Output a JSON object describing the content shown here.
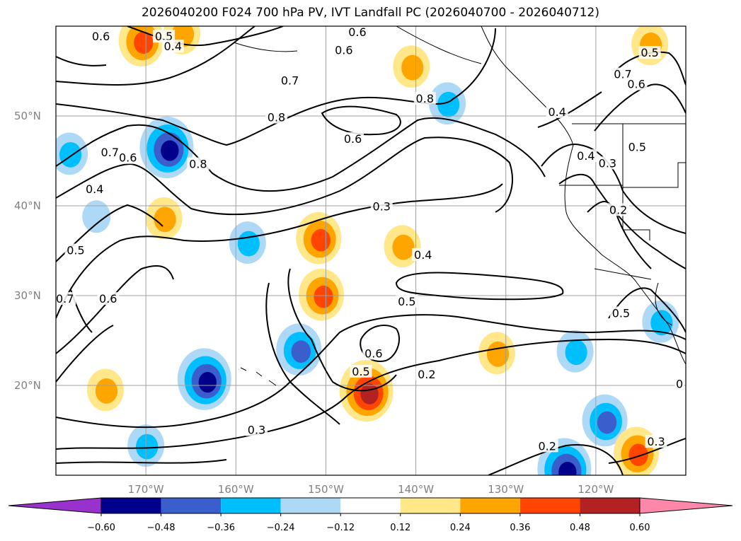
{
  "chart_data": {
    "type": "map",
    "title": "2026040200 F024 700 hPa PV, IVT Landfall PC (2026040700 - 2026040712)",
    "lat_ticks": [
      "20°N",
      "30°N",
      "40°N",
      "50°N"
    ],
    "lon_ticks": [
      "170°W",
      "160°W",
      "150°W",
      "140°W",
      "130°W",
      "120°W"
    ],
    "extent": {
      "lon": [
        -180,
        -110
      ],
      "lat": [
        10,
        60
      ]
    },
    "grid": true,
    "contour_labels": [
      {
        "text": "0.6",
        "lon": -175,
        "lat": 58.8
      },
      {
        "text": "0.5",
        "lon": -168,
        "lat": 58.8
      },
      {
        "text": "0.4",
        "lon": -167,
        "lat": 57.7
      },
      {
        "text": "0.6",
        "lon": -146.5,
        "lat": 59.3
      },
      {
        "text": "0.6",
        "lon": -148,
        "lat": 57.3
      },
      {
        "text": "0.7",
        "lon": -154,
        "lat": 53.9
      },
      {
        "text": "0.8",
        "lon": -155.5,
        "lat": 49.8
      },
      {
        "text": "0.6",
        "lon": -147,
        "lat": 47.4
      },
      {
        "text": "0.8",
        "lon": -139,
        "lat": 51.9
      },
      {
        "text": "0.4",
        "lon": -124.3,
        "lat": 50.4
      },
      {
        "text": "0.7",
        "lon": -117,
        "lat": 54.6
      },
      {
        "text": "0.6",
        "lon": -115.5,
        "lat": 53.5
      },
      {
        "text": "0.5",
        "lon": -114,
        "lat": 57.0
      },
      {
        "text": "0.7",
        "lon": -174,
        "lat": 45.9
      },
      {
        "text": "0.6",
        "lon": -172,
        "lat": 45.3
      },
      {
        "text": "0.4",
        "lon": -175.7,
        "lat": 41.8
      },
      {
        "text": "0.8",
        "lon": -164.2,
        "lat": 44.6
      },
      {
        "text": "0.3",
        "lon": -143.8,
        "lat": 39.9
      },
      {
        "text": "0.4",
        "lon": -121.1,
        "lat": 45.5
      },
      {
        "text": "0.3",
        "lon": -118.7,
        "lat": 44.7
      },
      {
        "text": "0.5",
        "lon": -115.4,
        "lat": 46.5
      },
      {
        "text": "0.2",
        "lon": -117.5,
        "lat": 39.5
      },
      {
        "text": "0.5",
        "lon": -177.8,
        "lat": 35.0
      },
      {
        "text": "0.6",
        "lon": -174.2,
        "lat": 29.6
      },
      {
        "text": "0.7",
        "lon": -179,
        "lat": 29.6
      },
      {
        "text": "0.4",
        "lon": -139.2,
        "lat": 34.5
      },
      {
        "text": "0.5",
        "lon": -141,
        "lat": 29.3
      },
      {
        "text": "0.6",
        "lon": -144.7,
        "lat": 23.5
      },
      {
        "text": "0.5",
        "lon": -146.1,
        "lat": 21.5
      },
      {
        "text": "0.2",
        "lon": -138.8,
        "lat": 21.2
      },
      {
        "text": "0.3",
        "lon": -157.7,
        "lat": 15.0
      },
      {
        "text": "0.2",
        "lon": -125.4,
        "lat": 13.2
      },
      {
        "text": "0.3",
        "lon": -113.3,
        "lat": 13.7
      },
      {
        "text": "0.5",
        "lon": -117.2,
        "lat": 28.0
      },
      {
        "text": "0",
        "lon": -110.7,
        "lat": 20.1
      }
    ],
    "colorbar": {
      "ticks": [
        "−0.60",
        "−0.48",
        "−0.36",
        "−0.24",
        "−0.12",
        "0.12",
        "0.24",
        "0.36",
        "0.48",
        "0.60"
      ],
      "levels": [
        -0.6,
        -0.48,
        -0.36,
        -0.24,
        -0.12,
        0.12,
        0.24,
        0.36,
        0.48,
        0.6
      ],
      "colors": [
        "#9932cc",
        "#00008b",
        "#3a5fcd",
        "#00bfff",
        "#add8f6",
        "#ffffff",
        "#ffe78a",
        "#ffa500",
        "#ff4500",
        "#b22222",
        "#ff88aa"
      ],
      "extend": "both"
    },
    "shaded_anomalies": [
      {
        "lon": -170.5,
        "lat": 58.4,
        "value": 0.45
      },
      {
        "lon": -166,
        "lat": 59.2,
        "value": 0.3
      },
      {
        "lon": -140.5,
        "lat": 55.5,
        "value": 0.3
      },
      {
        "lon": -136.5,
        "lat": 51.4,
        "value": -0.3
      },
      {
        "lon": -114,
        "lat": 58,
        "value": 0.3
      },
      {
        "lon": -167.7,
        "lat": 46.5,
        "value": -0.55
      },
      {
        "lon": -178.5,
        "lat": 45.8,
        "value": -0.3
      },
      {
        "lon": -168,
        "lat": 38.6,
        "value": 0.3
      },
      {
        "lon": -158.7,
        "lat": 35.9,
        "value": -0.3
      },
      {
        "lon": -150.8,
        "lat": 36.4,
        "value": 0.4
      },
      {
        "lon": -141.5,
        "lat": 35.5,
        "value": 0.3
      },
      {
        "lon": -150.5,
        "lat": 30.1,
        "value": 0.42
      },
      {
        "lon": -153,
        "lat": 24.0,
        "value": -0.4
      },
      {
        "lon": -163.5,
        "lat": 20.7,
        "value": -0.5
      },
      {
        "lon": -174.5,
        "lat": 19.5,
        "value": 0.3
      },
      {
        "lon": -145.5,
        "lat": 19.4,
        "value": 0.48
      },
      {
        "lon": -131,
        "lat": 23.6,
        "value": 0.3
      },
      {
        "lon": -119,
        "lat": 16.1,
        "value": -0.4
      },
      {
        "lon": -115.5,
        "lat": 12.5,
        "value": 0.4
      },
      {
        "lon": -123.5,
        "lat": 10.7,
        "value": -0.5
      },
      {
        "lon": -175.5,
        "lat": 38.8,
        "value": -0.15
      },
      {
        "lon": -170,
        "lat": 13.3,
        "value": -0.3
      },
      {
        "lon": -122.3,
        "lat": 23.8,
        "value": -0.3
      },
      {
        "lon": -112.8,
        "lat": 27.1,
        "value": -0.25
      }
    ]
  }
}
